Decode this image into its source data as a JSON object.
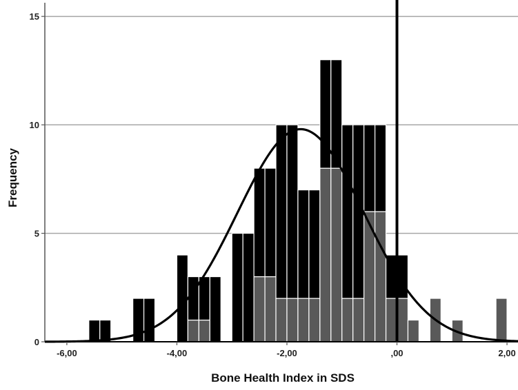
{
  "chart_data": {
    "type": "bar",
    "title": "",
    "xlabel": "Bone Health Index in SDS",
    "ylabel": "Frequency",
    "xlim": [
      -6.4,
      2.2
    ],
    "ylim": [
      0,
      15.5
    ],
    "grid": true,
    "x_ticks": [
      {
        "value": -6.0,
        "label": "-6,00"
      },
      {
        "value": -4.0,
        "label": "-4,00"
      },
      {
        "value": -2.0,
        "label": "-2,00"
      },
      {
        "value": 0.0,
        "label": ",00"
      },
      {
        "value": 2.0,
        "label": "2,00"
      }
    ],
    "y_ticks": [
      {
        "value": 0,
        "label": "0"
      },
      {
        "value": 5,
        "label": "5"
      },
      {
        "value": 10,
        "label": "10"
      },
      {
        "value": 15,
        "label": "15"
      }
    ],
    "bin_width": 0.2,
    "bin_starts": [
      -5.6,
      -5.4,
      -4.8,
      -4.6,
      -4.0,
      -3.8,
      -3.6,
      -3.4,
      -3.2,
      -3.0,
      -2.8,
      -2.6,
      -2.4,
      -2.2,
      -2.0,
      -1.8,
      -1.6,
      -1.4,
      -1.2,
      -1.0,
      -0.8,
      -0.6,
      -0.4,
      -0.2,
      0.0,
      0.2,
      0.4,
      0.6,
      0.8,
      1.0,
      1.6,
      1.8
    ],
    "series": [
      {
        "values": [
          0,
          0,
          0,
          0,
          0,
          1,
          1,
          0,
          0,
          0,
          0,
          3,
          3,
          2,
          2,
          2,
          2,
          8,
          8,
          2,
          2,
          6,
          6,
          2,
          2,
          1,
          0,
          2,
          0,
          1,
          0,
          2
        ],
        "color": "#595959"
      },
      {
        "values": [
          1,
          1,
          2,
          2,
          4,
          2,
          2,
          3,
          0,
          5,
          5,
          5,
          5,
          8,
          8,
          5,
          5,
          5,
          5,
          8,
          8,
          4,
          4,
          2,
          2,
          0,
          0,
          0,
          0,
          0,
          0,
          0
        ],
        "color": "#000000"
      }
    ],
    "fit_curve": {
      "type": "normal",
      "mean": -1.75,
      "sd": 1.15,
      "peak": 9.8
    },
    "reference_line": {
      "x": 0.0
    },
    "colors": {
      "curve": "#000000",
      "grid": "#a6a6a6",
      "bar_edge": "#ffffff"
    }
  }
}
